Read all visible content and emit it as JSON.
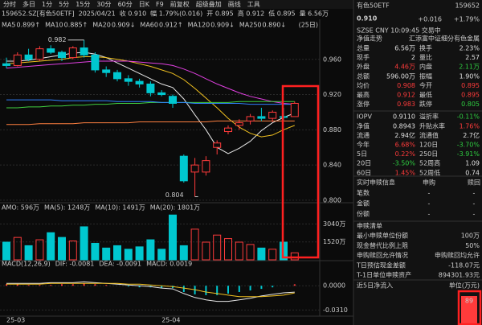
{
  "toolbar": {
    "tabs": [
      "分时",
      "多日",
      "1分",
      "5分",
      "15分",
      "30分",
      "60分",
      "日K",
      "F9",
      "前复权",
      "超级叠加",
      "画线",
      "工具"
    ]
  },
  "info_bar": [
    "159652.SZ[有色50ETF]",
    "2025/04/21",
    "收 0.910",
    "幅 1.79%(0.016)",
    "开 0.895",
    "高 0.912",
    "低 0.895",
    "量 6.56万"
  ],
  "chart_data": [
    {
      "type": "candlestick",
      "period_label": "(25日)",
      "max_label": "0.982",
      "min_label": "0.804",
      "up_color": "#ff3b3b",
      "down_color": "#00c8d0",
      "categories": [
        "25-03",
        null,
        null,
        null,
        null,
        null,
        null,
        null,
        null,
        null,
        null,
        null,
        null,
        null,
        "25-04",
        null,
        null,
        null,
        null,
        null,
        null,
        null,
        null,
        null,
        null,
        null,
        null
      ],
      "open": [
        0.955,
        0.953,
        0.965,
        0.96,
        0.972,
        0.968,
        0.962,
        0.973,
        0.965,
        0.948,
        0.945,
        0.938,
        0.935,
        0.932,
        0.922,
        0.918,
        0.85,
        0.832,
        0.832,
        0.86,
        0.878,
        0.885,
        0.89,
        0.895,
        0.893,
        0.895,
        0.895
      ],
      "high": [
        0.962,
        0.968,
        0.972,
        0.975,
        0.976,
        0.97,
        0.975,
        0.982,
        0.968,
        0.952,
        0.948,
        0.942,
        0.938,
        0.935,
        0.925,
        0.92,
        0.852,
        0.848,
        0.85,
        0.868,
        0.885,
        0.892,
        0.898,
        0.905,
        0.902,
        0.905,
        0.912
      ],
      "low": [
        0.95,
        0.952,
        0.958,
        0.958,
        0.966,
        0.958,
        0.96,
        0.962,
        0.945,
        0.94,
        0.935,
        0.93,
        0.928,
        0.918,
        0.918,
        0.905,
        0.82,
        0.804,
        0.828,
        0.852,
        0.875,
        0.88,
        0.886,
        0.89,
        0.889,
        0.89,
        0.895
      ],
      "close": [
        0.953,
        0.965,
        0.96,
        0.972,
        0.968,
        0.962,
        0.973,
        0.965,
        0.948,
        0.945,
        0.938,
        0.935,
        0.932,
        0.922,
        0.92,
        0.91,
        0.822,
        0.84,
        0.845,
        0.865,
        0.882,
        0.888,
        0.895,
        0.893,
        0.9,
        0.894,
        0.91
      ],
      "series": [
        {
          "name": "MA5",
          "label": "0.899↑",
          "color": "#e8e8e8",
          "values": [
            0.958,
            0.958,
            0.959,
            0.961,
            0.963,
            0.965,
            0.967,
            0.968,
            0.966,
            0.962,
            0.956,
            0.95,
            0.944,
            0.938,
            0.932,
            0.928,
            0.915,
            0.897,
            0.88,
            0.86,
            0.853,
            0.859,
            0.867,
            0.879,
            0.888,
            0.894,
            0.899
          ]
        },
        {
          "name": "MA10",
          "label": "0.885↑",
          "color": "#f0c020",
          "values": [
            0.955,
            0.956,
            0.957,
            0.958,
            0.959,
            0.96,
            0.962,
            0.963,
            0.963,
            0.962,
            0.96,
            0.958,
            0.955,
            0.952,
            0.948,
            0.944,
            0.937,
            0.927,
            0.916,
            0.905,
            0.893,
            0.883,
            0.876,
            0.872,
            0.874,
            0.88,
            0.885
          ]
        },
        {
          "name": "MA20",
          "label": "0.909↓",
          "color": "#e040e0",
          "values": [
            0.95,
            0.951,
            0.952,
            0.953,
            0.954,
            0.955,
            0.956,
            0.957,
            0.958,
            0.958,
            0.958,
            0.958,
            0.957,
            0.956,
            0.955,
            0.953,
            0.949,
            0.944,
            0.938,
            0.932,
            0.927,
            0.922,
            0.918,
            0.915,
            0.912,
            0.91,
            0.909
          ]
        },
        {
          "name": "MA60",
          "label": "0.912↑",
          "color": "#40d040",
          "values": [
            0.905,
            0.905,
            0.906,
            0.906,
            0.907,
            0.907,
            0.908,
            0.908,
            0.909,
            0.909,
            0.91,
            0.91,
            0.91,
            0.911,
            0.911,
            0.911,
            0.911,
            0.911,
            0.911,
            0.911,
            0.911,
            0.912,
            0.912,
            0.912,
            0.912,
            0.912,
            0.912
          ]
        },
        {
          "name": "MA120",
          "label": "0.909↓",
          "color": "#3080ff",
          "values": [
            0.914,
            0.914,
            0.914,
            0.914,
            0.914,
            0.913,
            0.913,
            0.913,
            0.913,
            0.913,
            0.912,
            0.912,
            0.912,
            0.912,
            0.911,
            0.911,
            0.911,
            0.91,
            0.91,
            0.91,
            0.91,
            0.91,
            0.909,
            0.909,
            0.909,
            0.909,
            0.909
          ]
        },
        {
          "name": "MA250",
          "label": "0.890↓",
          "color": "#ff8040",
          "values": [
            0.886,
            0.886,
            0.886,
            0.887,
            0.887,
            0.887,
            0.887,
            0.888,
            0.888,
            0.888,
            0.888,
            0.888,
            0.889,
            0.889,
            0.889,
            0.889,
            0.889,
            0.889,
            0.889,
            0.89,
            0.89,
            0.89,
            0.89,
            0.89,
            0.89,
            0.89,
            0.89
          ]
        }
      ],
      "ylim": [
        0.799,
        1.0
      ],
      "yticks": [
        {
          "value": 0.96,
          "label": "0.960"
        },
        {
          "value": 0.92,
          "label": "0.920"
        },
        {
          "value": 0.88,
          "label": "0.880"
        },
        {
          "value": 0.84,
          "label": "0.840"
        },
        {
          "value": 0.8,
          "label": "0.800"
        }
      ],
      "grid": true
    },
    {
      "type": "bar",
      "header": [
        "AMO: 596万",
        "MA(5): 1248万",
        "MA(10): 1491万",
        "MA(20): 1801万"
      ],
      "values": [
        1500,
        1900,
        1200,
        1700,
        2300,
        1900,
        1600,
        2800,
        1400,
        1000,
        1200,
        900,
        1100,
        1700,
        900,
        3800,
        1200,
        2600,
        1500,
        2100,
        1800,
        1500,
        1300,
        1000,
        900,
        1500,
        596
      ],
      "ylim": [
        0,
        4500
      ],
      "yticks": [
        {
          "value": 3040,
          "label": "3040万"
        },
        {
          "value": 1520,
          "label": "1520万"
        }
      ]
    },
    {
      "type": "macd",
      "header": [
        "MACD(12,26,9)",
        "DIF: -0.0081",
        "DEA: -0.0091",
        "MACD: 0.0019"
      ],
      "values": [
        0.002,
        0.002,
        0.001,
        0.001,
        0.001,
        0.002,
        0.002,
        0.003,
        0.002,
        0.001,
        0,
        -0.001,
        -0.002,
        -0.002,
        -0.003,
        -0.003,
        -0.008,
        -0.011,
        -0.012,
        -0.012,
        -0.01,
        -0.008,
        -0.006,
        -0.004,
        -0.002,
        0,
        0.0019
      ],
      "series": [
        {
          "name": "DIF",
          "color": "#e8e8e8",
          "values": [
            0.003,
            0.003,
            0.003,
            0.003,
            0.004,
            0.004,
            0.004,
            0.005,
            0.004,
            0.003,
            0.002,
            0.001,
            0,
            -0.001,
            -0.003,
            -0.004,
            -0.01,
            -0.015,
            -0.018,
            -0.02,
            -0.02,
            -0.018,
            -0.016,
            -0.013,
            -0.011,
            -0.009,
            -0.0081
          ]
        },
        {
          "name": "DEA",
          "color": "#f0c020",
          "values": [
            0.002,
            0.002,
            0.002,
            0.002,
            0.003,
            0.003,
            0.003,
            0.003,
            0.003,
            0.003,
            0.003,
            0.002,
            0.002,
            0.001,
            0,
            -0.001,
            -0.003,
            -0.005,
            -0.008,
            -0.01,
            -0.012,
            -0.014,
            -0.014,
            -0.014,
            -0.013,
            -0.012,
            -0.0091
          ]
        }
      ],
      "ylim": [
        -0.042,
        0.026
      ],
      "yticks": [
        {
          "value": 0,
          "label": "0.0000"
        },
        {
          "value": -0.031,
          "label": "-0.0310"
        }
      ]
    }
  ],
  "quote": {
    "name": "有色50ETF",
    "code": "159652",
    "price": "0.910",
    "change": "+0.016",
    "pct": "+1.79%",
    "status": "SZSE CNY 10:09:45 交易中",
    "nav_link": "净值走势",
    "fund": "汇添富中证细分有色金属"
  },
  "stats": [
    [
      {
        "k": "总量",
        "v": "6.56万",
        "c": "flat"
      },
      {
        "k": "换手",
        "v": "2.23%",
        "c": "flat"
      }
    ],
    [
      {
        "k": "现手",
        "v": "2",
        "c": "flat"
      },
      {
        "k": "量比",
        "v": "2.57",
        "c": "flat"
      }
    ],
    [
      {
        "k": "外盘",
        "v": "4.46万",
        "c": "up"
      },
      {
        "k": "内盘",
        "v": "2.11万",
        "c": "down"
      }
    ],
    [
      {
        "k": "总额",
        "v": "596.00万",
        "c": "flat"
      },
      {
        "k": "振幅",
        "v": "1.90%",
        "c": "flat"
      }
    ],
    [
      {
        "k": "均价",
        "v": "0.908",
        "c": "up"
      },
      {
        "k": "今开",
        "v": "0.895",
        "c": "up"
      }
    ],
    [
      {
        "k": "最高",
        "v": "0.912",
        "c": "up"
      },
      {
        "k": "最低",
        "v": "0.895",
        "c": "up"
      }
    ],
    [
      {
        "k": "涨停",
        "v": "0.983",
        "c": "up"
      },
      {
        "k": "跌停",
        "v": "0.805",
        "c": "down"
      }
    ],
    [
      {
        "k": "IOPV",
        "v": "0.9110",
        "c": "flat"
      },
      {
        "k": "溢折率",
        "v": "-0.11%",
        "c": "down"
      }
    ],
    [
      {
        "k": "净值",
        "v": "0.8943",
        "c": "flat"
      },
      {
        "k": "升贴水率",
        "v": "1.76%",
        "c": "up"
      }
    ],
    [
      {
        "k": "流通",
        "v": "2.94亿",
        "c": "flat"
      },
      {
        "k": "流通值",
        "v": "2.7亿",
        "c": "flat"
      }
    ],
    [
      {
        "k": "今年",
        "v": "6.68%",
        "c": "up"
      },
      {
        "k": "120日",
        "v": "-3.70%",
        "c": "down"
      }
    ],
    [
      {
        "k": "5日",
        "v": "0.22%",
        "c": "up"
      },
      {
        "k": "250日",
        "v": "-3.91%",
        "c": "down"
      }
    ],
    [
      {
        "k": "20日",
        "v": "-3.50%",
        "c": "down"
      },
      {
        "k": "52周高",
        "v": "1.09",
        "c": "flat"
      }
    ],
    [
      {
        "k": "60日",
        "v": "1.45%",
        "c": "up"
      },
      {
        "k": "52周低",
        "v": "0.74",
        "c": "flat"
      }
    ]
  ],
  "subscription": {
    "header": [
      "实时申赎信息",
      "申购",
      "赎回"
    ],
    "rows": [
      [
        "笔数",
        "-",
        "-"
      ],
      [
        "金额",
        "-",
        "-"
      ],
      [
        "份额",
        "-",
        "-"
      ]
    ]
  },
  "creation_list": {
    "title": "申赎清单",
    "rows": [
      [
        "最小申赎单位份额",
        "100万"
      ],
      [
        "现金替代比例上限",
        "50%"
      ],
      [
        "申购赎回允许情况",
        "申购赎回均允许"
      ],
      [
        "T日预估现金差额",
        "-118.07元"
      ],
      [
        "T-1日单位申赎资产",
        "894301.93元"
      ]
    ]
  },
  "net_inflow": {
    "title": "近5日净流入",
    "unit": "单位(万元)",
    "values": [
      89
    ],
    "color": "#ff3b3b"
  }
}
